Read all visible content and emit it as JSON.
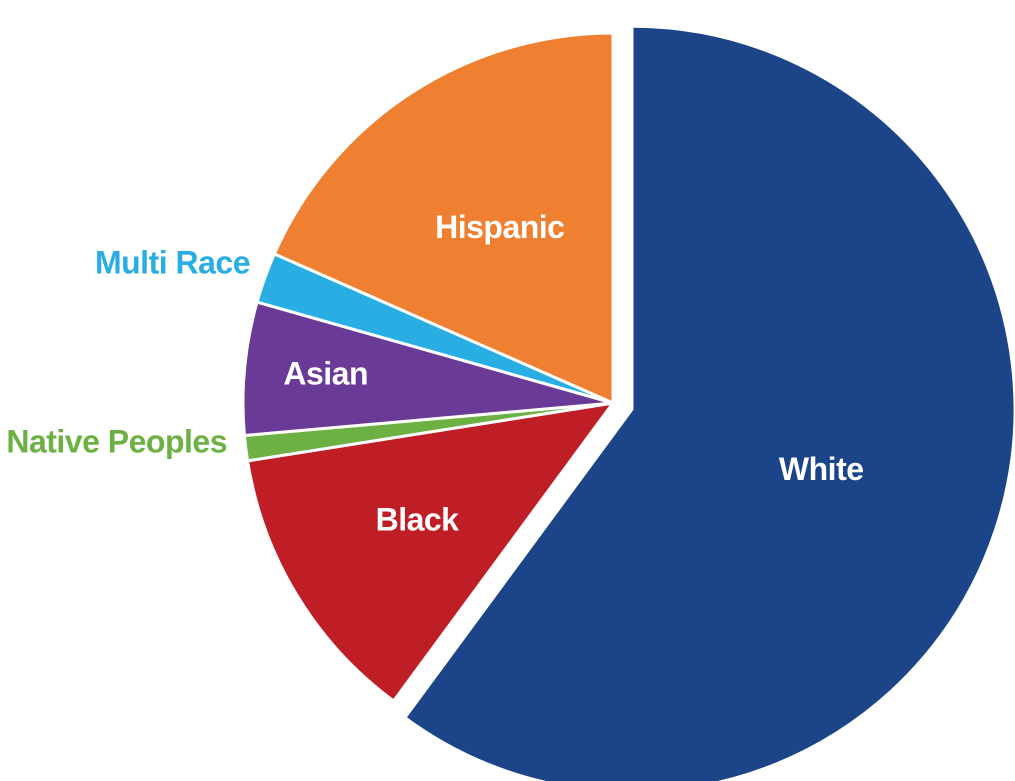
{
  "chart_data": {
    "type": "pie",
    "title": "",
    "unit": "",
    "slices": [
      {
        "label": "White",
        "value": 60.1,
        "color": "#1c4488"
      },
      {
        "label": "Black",
        "value": 12.4,
        "color": "#c01e26"
      },
      {
        "label": "Native Peoples",
        "value": 1.1,
        "color": "#6db043"
      },
      {
        "label": "Asian",
        "value": 5.8,
        "color": "#6a3a97"
      },
      {
        "label": "Multi Race",
        "value": 2.2,
        "color": "#29aee4"
      },
      {
        "label": "Hispanic",
        "value": 18.4,
        "color": "#ef7f31"
      }
    ],
    "start_angle_deg": 0,
    "direction": "clockwise",
    "exploded_slice": "White",
    "labels_inside": [
      "White",
      "Black",
      "Asian",
      "Hispanic"
    ],
    "labels_outside": [
      "Native Peoples",
      "Multi Race"
    ],
    "legend": "none"
  }
}
